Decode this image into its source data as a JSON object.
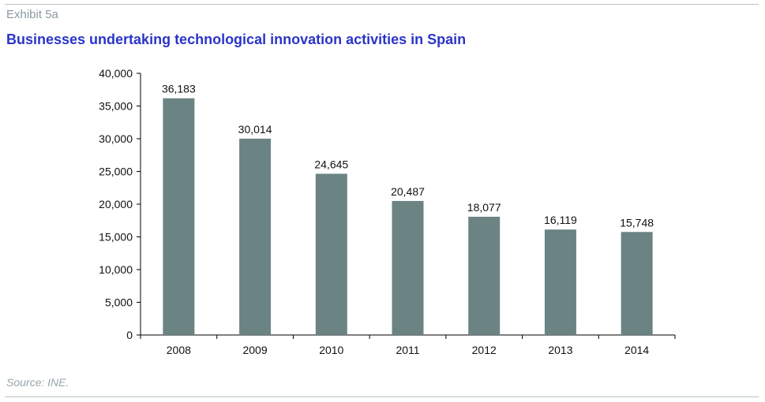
{
  "header": {
    "exhibit": "Exhibit 5a",
    "title": "Businesses undertaking technological innovation activities in Spain"
  },
  "footer": {
    "source": "Source: INE."
  },
  "chart_data": {
    "type": "bar",
    "categories": [
      "2008",
      "2009",
      "2010",
      "2011",
      "2012",
      "2013",
      "2014"
    ],
    "values": [
      36183,
      30014,
      24645,
      20487,
      18077,
      16119,
      15748
    ],
    "data_labels": [
      "36,183",
      "30,014",
      "24,645",
      "20,487",
      "18,077",
      "16,119",
      "15,748"
    ],
    "ylim": [
      0,
      40000
    ],
    "yticks": [
      0,
      5000,
      10000,
      15000,
      20000,
      25000,
      30000,
      35000,
      40000
    ],
    "ytick_labels": [
      "0",
      "5,000",
      "10,000",
      "15,000",
      "20,000",
      "25,000",
      "30,000",
      "35,000",
      "40,000"
    ],
    "grid": false,
    "legend": "none",
    "bar_color": "#6b8383"
  }
}
